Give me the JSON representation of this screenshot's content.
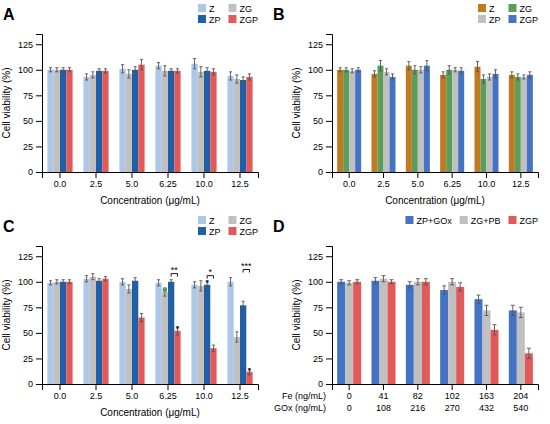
{
  "chart_data": [
    {
      "type": "bar",
      "title": "A",
      "categories": [
        "0.0",
        "2.5",
        "5.0",
        "6.25",
        "10.0",
        "12.5"
      ],
      "series": [
        {
          "name": "Z",
          "color": "#aec6e8",
          "values": [
            100,
            93,
            101,
            104,
            106,
            94
          ],
          "errors": [
            2,
            3,
            4,
            3,
            5,
            4
          ]
        },
        {
          "name": "ZG",
          "color": "#c0c0c0",
          "values": [
            100,
            95,
            96,
            99,
            98,
            91
          ],
          "errors": [
            2,
            3,
            4,
            5,
            5,
            4
          ]
        },
        {
          "name": "ZP",
          "color": "#1f5fa6",
          "values": [
            100,
            99,
            100,
            99,
            99,
            90
          ],
          "errors": [
            2,
            2,
            3,
            2,
            3,
            3
          ]
        },
        {
          "name": "ZGP",
          "color": "#e05a5a",
          "values": [
            100,
            99,
            105,
            99,
            98,
            93
          ],
          "errors": [
            2,
            2,
            5,
            2,
            3,
            3
          ]
        }
      ],
      "ylim": [
        0,
        135
      ],
      "yticks": [
        0,
        25,
        50,
        75,
        100,
        125
      ],
      "ylabel": "Cell viability (%)",
      "xlabel": "Concentration (μg/mL)",
      "legend": "upper right",
      "grid": false
    },
    {
      "type": "bar",
      "title": "B",
      "categories": [
        "0.0",
        "2.5",
        "5.0",
        "6.25",
        "10.0",
        "12.5"
      ],
      "series": [
        {
          "name": "Z",
          "color": "#c07a20",
          "values": [
            100,
            96,
            104,
            95,
            103,
            95
          ],
          "errors": [
            2,
            3,
            4,
            3,
            5,
            3
          ]
        },
        {
          "name": "ZG",
          "color": "#5b9e5b",
          "values": [
            100,
            104,
            100,
            100,
            91,
            93
          ],
          "errors": [
            2,
            5,
            4,
            4,
            4,
            3
          ]
        },
        {
          "name": "ZP",
          "color": "#c0c0c0",
          "values": [
            99,
            98,
            100,
            100,
            93,
            93
          ],
          "errors": [
            2,
            3,
            3,
            2,
            3,
            2
          ]
        },
        {
          "name": "ZGP",
          "color": "#4472c4",
          "values": [
            100,
            93,
            104,
            99,
            96,
            95
          ],
          "errors": [
            2,
            3,
            5,
            3,
            4,
            3
          ]
        }
      ],
      "ylim": [
        0,
        135
      ],
      "yticks": [
        0,
        25,
        50,
        75,
        100,
        125
      ],
      "ylabel": "Cell viability (%)",
      "xlabel": "Concentration (μg/mL)",
      "legend": "upper right",
      "grid": false
    },
    {
      "type": "bar",
      "title": "C",
      "categories": [
        "0.0",
        "2.5",
        "5.0",
        "6.25",
        "10.0",
        "12.5"
      ],
      "series": [
        {
          "name": "Z",
          "color": "#aec6e8",
          "values": [
            99,
            103,
            100,
            99,
            97,
            100
          ],
          "errors": [
            2,
            3,
            3,
            3,
            3,
            4
          ]
        },
        {
          "name": "ZG",
          "color": "#c0c0c0",
          "values": [
            100,
            105,
            93,
            90,
            96,
            46
          ],
          "errors": [
            2,
            3,
            4,
            4,
            5,
            5
          ]
        },
        {
          "name": "ZP",
          "color": "#1f5fa6",
          "values": [
            100,
            101,
            101,
            100,
            97,
            77
          ],
          "errors": [
            2,
            2,
            3,
            2,
            4,
            4
          ]
        },
        {
          "name": "ZGP",
          "color": "#e05a5a",
          "values": [
            100,
            103,
            65,
            52,
            35,
            12
          ],
          "errors": [
            2,
            2,
            4,
            4,
            3,
            3
          ]
        }
      ],
      "ylim": [
        0,
        135
      ],
      "yticks": [
        0,
        25,
        50,
        75,
        100,
        125
      ],
      "ylabel": "Cell viability (%)",
      "xlabel": "Concentration (μg/mL)",
      "legend": "upper right",
      "grid": false,
      "annotations": [
        {
          "type": "bracket",
          "text": "**",
          "category": "6.25",
          "series": [
            "ZP",
            "ZGP"
          ],
          "y": 108
        },
        {
          "type": "bracket",
          "text": "*",
          "category": "10.0",
          "series": [
            "ZP",
            "ZGP"
          ],
          "y": 106
        },
        {
          "type": "bracket",
          "text": "***",
          "category": "12.5",
          "series": [
            "ZP",
            "ZGP"
          ],
          "y": 112
        },
        {
          "type": "marker",
          "marker": "dot",
          "color": "#5b9e5b",
          "category": "6.25",
          "series": "ZG",
          "y": 92
        },
        {
          "type": "text",
          "text": "*",
          "category": "6.25",
          "series": "ZGP",
          "y": 55
        },
        {
          "type": "text",
          "text": "*",
          "category": "10.0",
          "series": "ZP",
          "y": 100
        },
        {
          "type": "text",
          "text": "*",
          "category": "12.5",
          "series": "ZGP",
          "y": 14
        }
      ]
    },
    {
      "type": "bar",
      "title": "D",
      "categories": [
        "0",
        "41",
        "82",
        "102",
        "163",
        "204"
      ],
      "xlabel": "Fe (ng/mL)",
      "categories_2": [
        "0",
        "108",
        "216",
        "270",
        "432",
        "540"
      ],
      "xlabel_2": "GOx (ng/mL)",
      "series": [
        {
          "name": "ZP+GOx",
          "color": "#4472c4",
          "values": [
            100,
            101,
            97,
            92,
            83,
            72
          ],
          "errors": [
            2,
            3,
            3,
            4,
            4,
            5
          ]
        },
        {
          "name": "ZG+PB",
          "color": "#c0c0c0",
          "values": [
            99,
            103,
            100,
            100,
            72,
            70
          ],
          "errors": [
            2,
            3,
            3,
            3,
            5,
            5
          ]
        },
        {
          "name": "ZGP",
          "color": "#e05a5a",
          "values": [
            100,
            100,
            100,
            95,
            53,
            30
          ],
          "errors": [
            2,
            2,
            3,
            4,
            5,
            5
          ]
        }
      ],
      "ylim": [
        0,
        135
      ],
      "yticks": [
        0,
        25,
        50,
        75,
        100,
        125
      ],
      "ylabel": "Cell viability (%)",
      "legend": "upper right",
      "grid": false
    }
  ]
}
